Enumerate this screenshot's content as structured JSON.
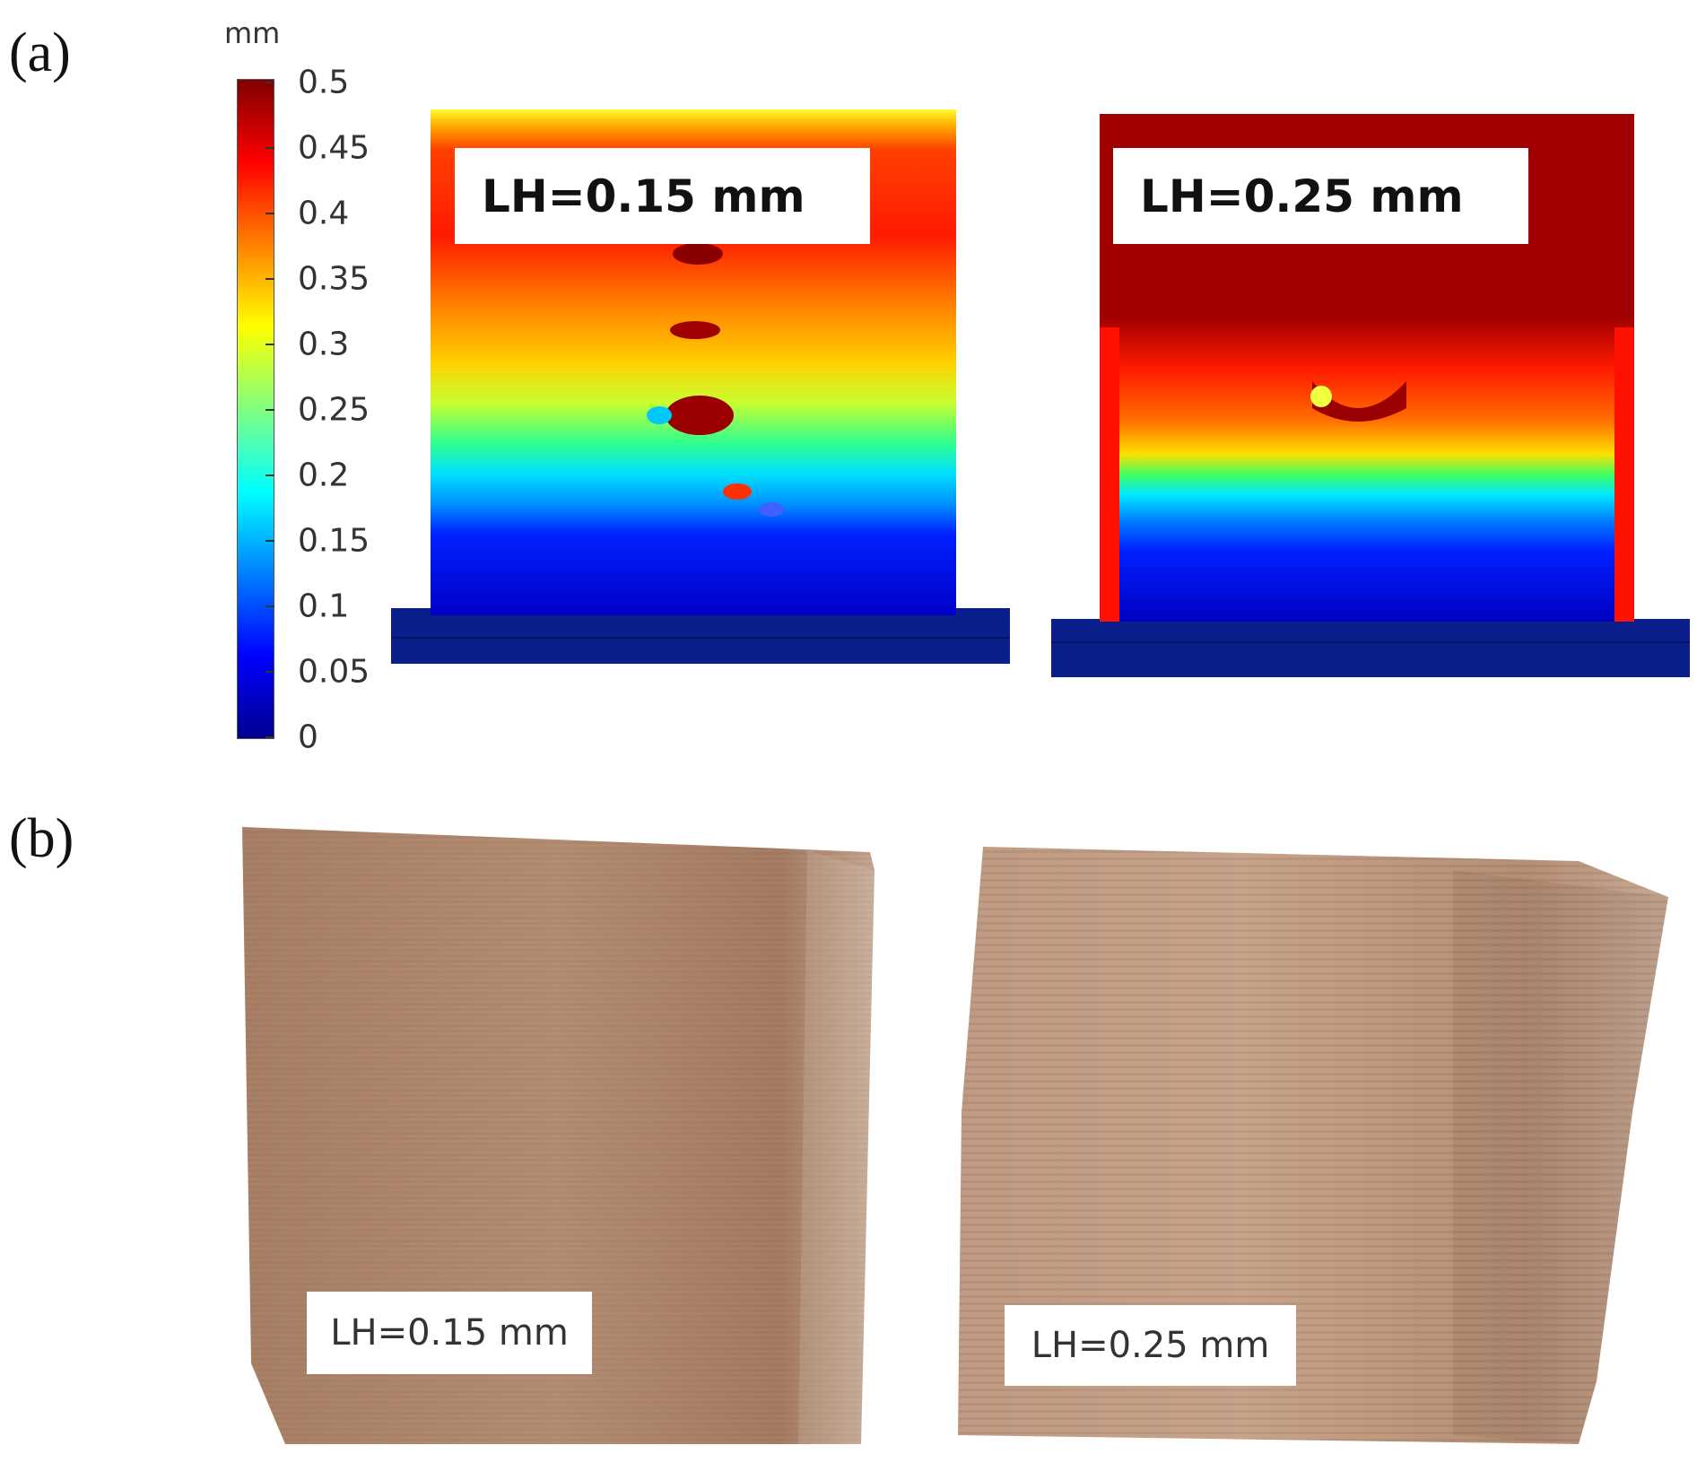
{
  "panels": {
    "a_letter": "(a)",
    "b_letter": "(b)"
  },
  "colorbar": {
    "unit": "mm",
    "ticks": [
      "0.5",
      "0.45",
      "0.4",
      "0.35",
      "0.3",
      "0.25",
      "0.2",
      "0.15",
      "0.1",
      "0.05",
      "0"
    ],
    "colormap": [
      "#7f0000",
      "#ff0000",
      "#ff8000",
      "#ffff00",
      "#80ff80",
      "#00ffff",
      "#0080ff",
      "#0000ff",
      "#00008f"
    ]
  },
  "simulations": [
    {
      "label": "LH=0.15 mm"
    },
    {
      "label": "LH=0.25 mm"
    }
  ],
  "photos": [
    {
      "label": "LH=0.15 mm"
    },
    {
      "label": "LH=0.25 mm"
    }
  ],
  "colors": {
    "specimen": "#b68e72",
    "substrate": "#0a1e8c"
  }
}
